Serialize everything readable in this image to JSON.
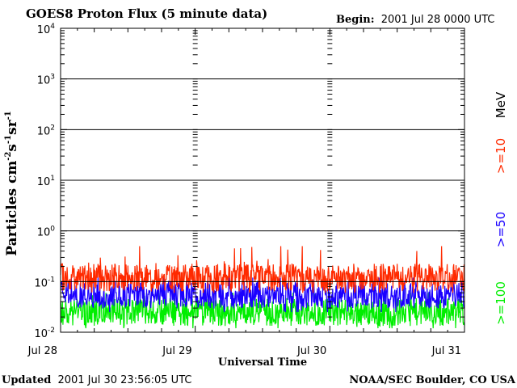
{
  "header": {
    "title": "GOES8 Proton Flux (5 minute data)",
    "begin_label": "Begin:",
    "begin_value": "2001 Jul 28 0000 UTC"
  },
  "footer": {
    "updated_label": "Updated",
    "updated_value": "2001 Jul 30 23:56:05 UTC",
    "credit": "NOAA/SEC Boulder, CO USA"
  },
  "chart_data": {
    "type": "line",
    "y_scale": "log",
    "ylim": [
      0.01,
      10000
    ],
    "y_ticks": [
      {
        "base": "10",
        "exp": "4",
        "value": 10000
      },
      {
        "base": "10",
        "exp": "3",
        "value": 1000
      },
      {
        "base": "10",
        "exp": "2",
        "value": 100
      },
      {
        "base": "10",
        "exp": "1",
        "value": 10
      },
      {
        "base": "10",
        "exp": "0",
        "value": 1
      },
      {
        "base": "10",
        "exp": "-1",
        "value": 0.1
      },
      {
        "base": "10",
        "exp": "-2",
        "value": 0.01
      }
    ],
    "ylabel": {
      "text": "Particles cm",
      "e1": "-2",
      "t2": "s",
      "e2": "-1",
      "t3": "sr",
      "e3": "-1"
    },
    "xlabel": "Universal Time",
    "x_ticks": [
      "Jul 28",
      "Jul 29",
      "Jul 30",
      "Jul 31"
    ],
    "xlim": [
      "2001-07-28 00:00",
      "2001-07-31 00:00"
    ],
    "grid": true,
    "legend_placement": "right-vertical",
    "legend_unit": "MeV",
    "series": [
      {
        "name": ">=10",
        "color": "#ff2a00",
        "typical_value": 0.12,
        "min_value": 0.06,
        "max_value": 0.5
      },
      {
        "name": ">=50",
        "color": "#1a00ff",
        "typical_value": 0.055,
        "min_value": 0.025,
        "max_value": 0.12
      },
      {
        "name": ">=100",
        "color": "#00ee00",
        "typical_value": 0.025,
        "min_value": 0.012,
        "max_value": 0.06
      }
    ]
  }
}
